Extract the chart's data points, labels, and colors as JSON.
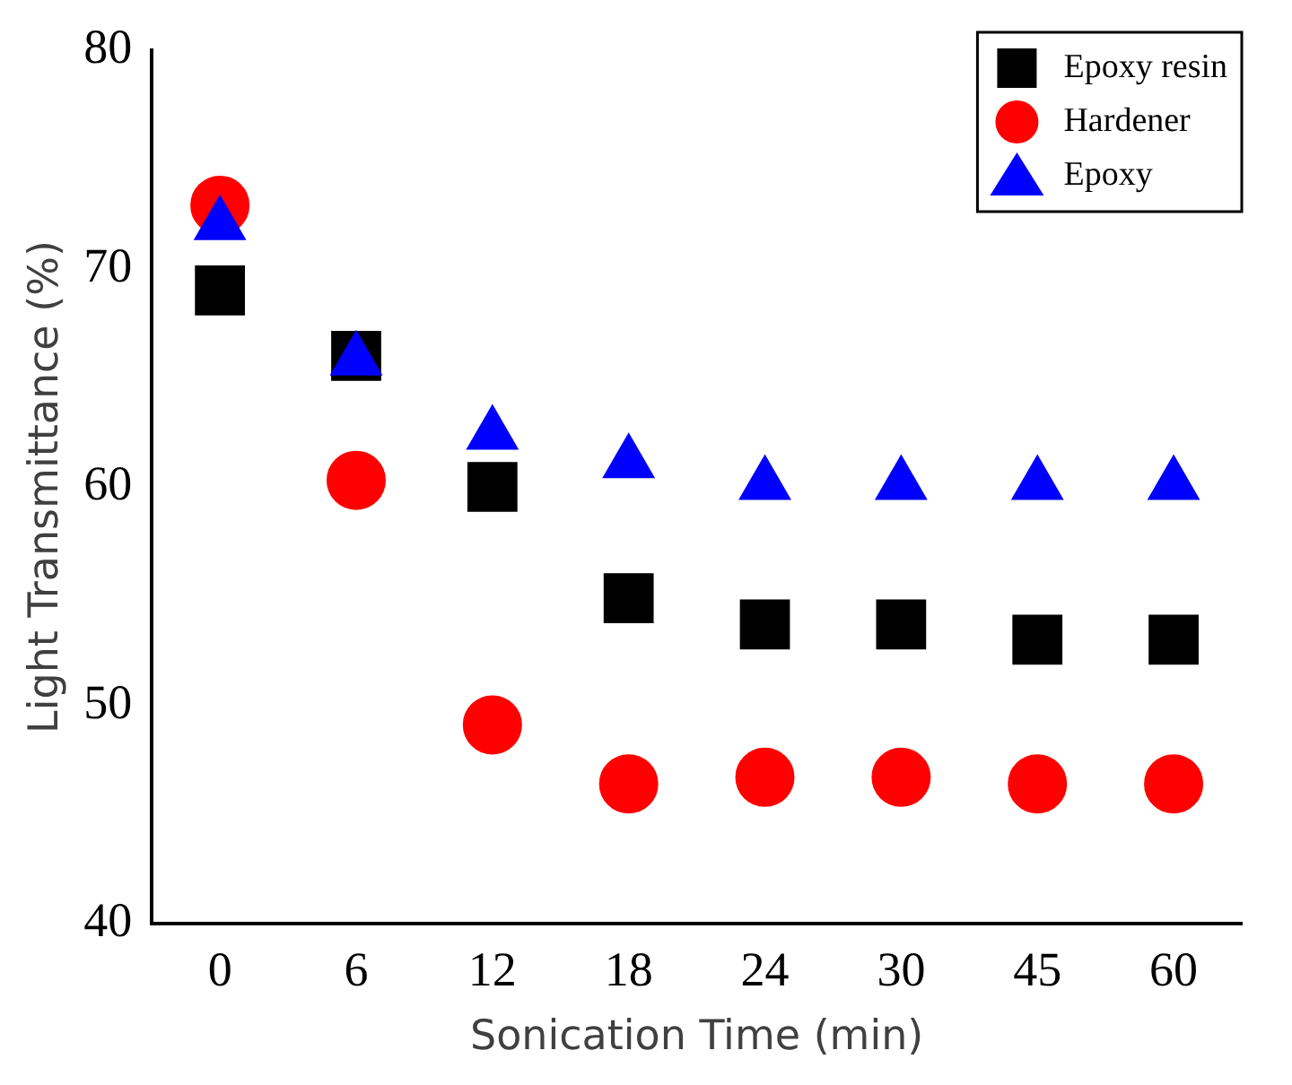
{
  "chart_data": {
    "type": "scatter",
    "xlabel": "Sonication Time (min)",
    "ylabel": "Light Transmittance (%)",
    "categories": [
      "0",
      "6",
      "12",
      "18",
      "24",
      "30",
      "45",
      "60"
    ],
    "series": [
      {
        "name": "Epoxy resin",
        "color": "#000000",
        "marker": "square",
        "values": [
          69.0,
          66.0,
          60.0,
          54.9,
          53.7,
          53.7,
          53.0,
          53.0
        ]
      },
      {
        "name": "Hardener",
        "color": "#ff0000",
        "marker": "circle",
        "values": [
          72.9,
          60.3,
          49.1,
          46.4,
          46.7,
          46.7,
          46.4,
          46.4
        ]
      },
      {
        "name": "Epoxy",
        "color": "#0000ff",
        "marker": "triangle",
        "values": [
          72.0,
          65.8,
          62.4,
          61.1,
          60.1,
          60.1,
          60.1,
          60.1
        ]
      }
    ],
    "ylim": [
      40,
      80
    ],
    "yticks": [
      40,
      50,
      60,
      70,
      80
    ],
    "grid": false,
    "legend": "top right"
  }
}
